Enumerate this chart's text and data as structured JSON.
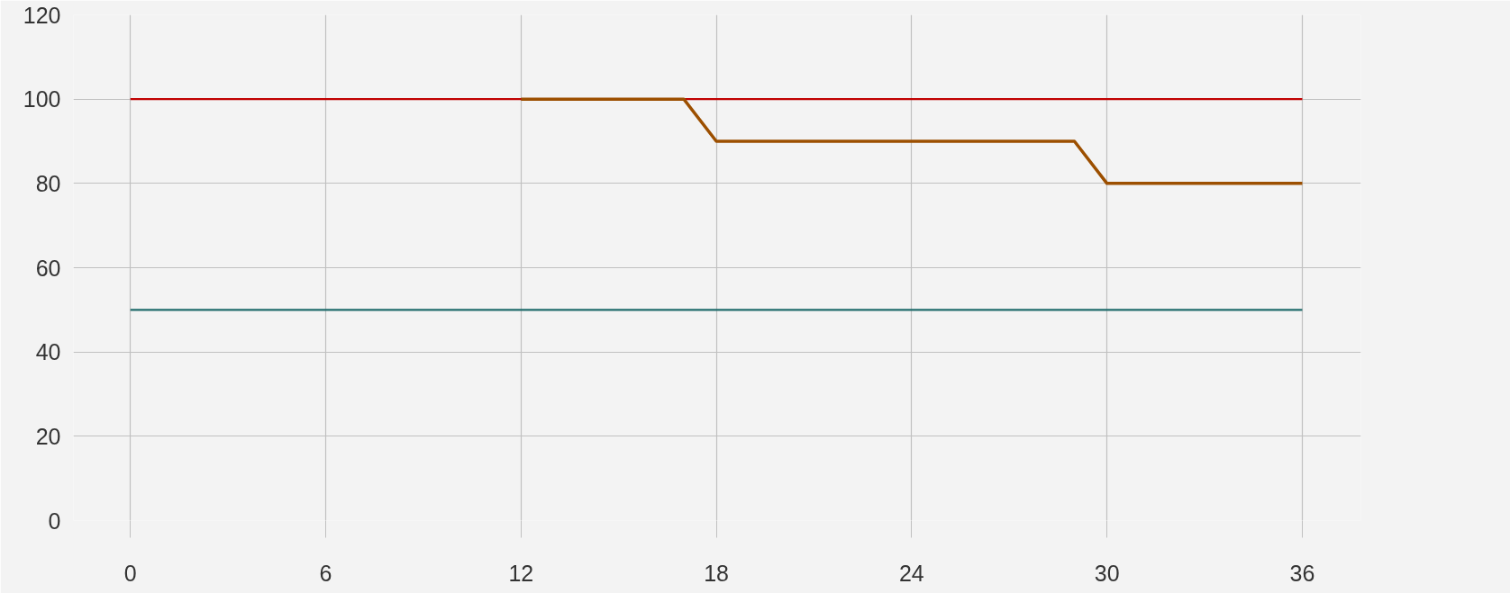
{
  "chart_data": {
    "type": "line",
    "xlim": [
      -1.75,
      37.8
    ],
    "ylim": [
      0,
      120
    ],
    "xticks": [
      0,
      6,
      12,
      18,
      24,
      30,
      36
    ],
    "yticks": [
      0,
      20,
      40,
      60,
      80,
      100,
      120
    ],
    "grid": true,
    "series": [
      {
        "color": "#c00000",
        "x": [
          0,
          36
        ],
        "values": [
          100,
          100
        ]
      },
      {
        "color": "#1f6b6b",
        "x": [
          0,
          36
        ],
        "values": [
          50,
          50
        ]
      },
      {
        "color": "#9c4f00",
        "x": [
          12,
          17,
          18,
          29,
          30,
          36
        ],
        "values": [
          100,
          100,
          90,
          90,
          80,
          80
        ]
      }
    ]
  }
}
